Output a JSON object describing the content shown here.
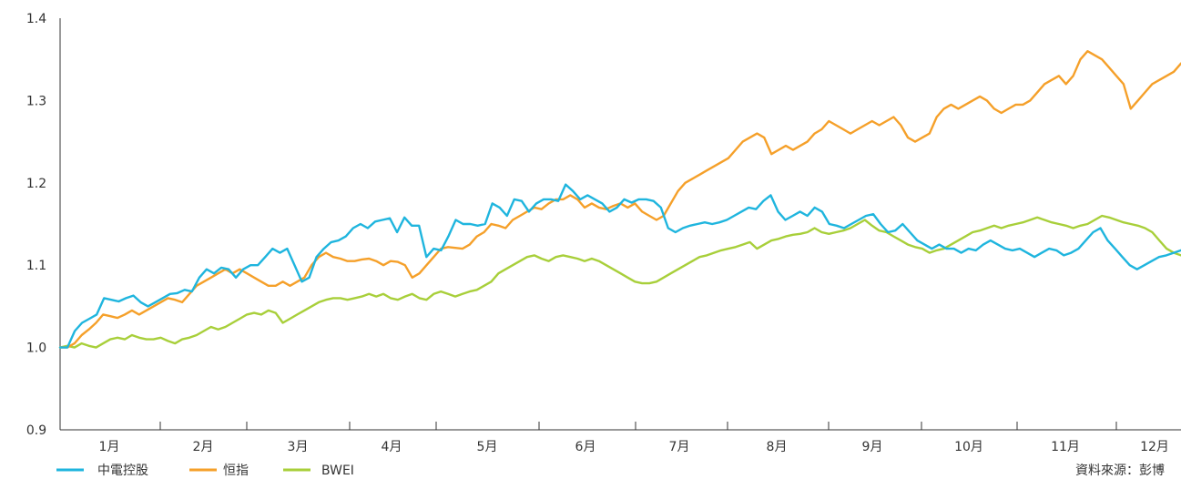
{
  "chart_data": {
    "type": "line",
    "title": "",
    "xlabel": "",
    "ylabel": "",
    "ylim": [
      0.9,
      1.4
    ],
    "yticks": [
      "0.9",
      "1.0",
      "1.1",
      "1.2",
      "1.3",
      "1.4"
    ],
    "x_month_labels": [
      "1月",
      "2月",
      "3月",
      "4月",
      "5月",
      "6月",
      "7月",
      "8月",
      "9月",
      "10月",
      "11月",
      "12月"
    ],
    "grid": false,
    "legend_position": "bottom-left",
    "source": "資料來源：彭博",
    "series": [
      {
        "name": "中電控股",
        "color": "#1fb5de",
        "values": [
          1.0,
          1.0,
          1.02,
          1.03,
          1.035,
          1.04,
          1.06,
          1.058,
          1.056,
          1.06,
          1.063,
          1.055,
          1.05,
          1.055,
          1.06,
          1.065,
          1.066,
          1.07,
          1.068,
          1.085,
          1.095,
          1.09,
          1.097,
          1.095,
          1.085,
          1.095,
          1.1,
          1.1,
          1.11,
          1.12,
          1.115,
          1.12,
          1.1,
          1.08,
          1.085,
          1.11,
          1.12,
          1.128,
          1.13,
          1.135,
          1.145,
          1.15,
          1.145,
          1.153,
          1.155,
          1.157,
          1.14,
          1.158,
          1.148,
          1.148,
          1.11,
          1.12,
          1.118,
          1.135,
          1.155,
          1.15,
          1.15,
          1.148,
          1.15,
          1.175,
          1.17,
          1.16,
          1.18,
          1.178,
          1.165,
          1.175,
          1.18,
          1.18,
          1.178,
          1.198,
          1.19,
          1.18,
          1.185,
          1.18,
          1.175,
          1.165,
          1.17,
          1.18,
          1.176,
          1.18,
          1.18,
          1.178,
          1.17,
          1.145,
          1.14,
          1.145,
          1.148,
          1.15,
          1.152,
          1.15,
          1.152,
          1.155,
          1.16,
          1.165,
          1.17,
          1.168,
          1.178,
          1.185,
          1.165,
          1.155,
          1.16,
          1.165,
          1.16,
          1.17,
          1.165,
          1.15,
          1.148,
          1.145,
          1.15,
          1.155,
          1.16,
          1.162,
          1.15,
          1.14,
          1.142,
          1.15,
          1.14,
          1.13,
          1.125,
          1.12,
          1.125,
          1.12,
          1.12,
          1.115,
          1.12,
          1.118,
          1.125,
          1.13,
          1.125,
          1.12,
          1.118,
          1.12,
          1.115,
          1.11,
          1.115,
          1.12,
          1.118,
          1.112,
          1.115,
          1.12,
          1.13,
          1.14,
          1.145,
          1.13,
          1.12,
          1.11,
          1.1,
          1.095,
          1.1,
          1.105,
          1.11,
          1.112,
          1.115,
          1.118
        ]
      },
      {
        "name": "恒指",
        "color": "#f5a02a",
        "values": [
          1.0,
          1.0,
          1.005,
          1.015,
          1.022,
          1.03,
          1.04,
          1.038,
          1.036,
          1.04,
          1.045,
          1.04,
          1.045,
          1.05,
          1.055,
          1.06,
          1.058,
          1.055,
          1.065,
          1.075,
          1.08,
          1.085,
          1.09,
          1.095,
          1.09,
          1.095,
          1.09,
          1.085,
          1.08,
          1.075,
          1.075,
          1.08,
          1.075,
          1.08,
          1.085,
          1.1,
          1.11,
          1.115,
          1.11,
          1.108,
          1.105,
          1.105,
          1.107,
          1.108,
          1.105,
          1.1,
          1.105,
          1.104,
          1.1,
          1.085,
          1.09,
          1.1,
          1.11,
          1.12,
          1.122,
          1.121,
          1.12,
          1.125,
          1.135,
          1.14,
          1.15,
          1.148,
          1.145,
          1.155,
          1.16,
          1.165,
          1.17,
          1.168,
          1.175,
          1.18,
          1.18,
          1.185,
          1.18,
          1.17,
          1.175,
          1.17,
          1.168,
          1.172,
          1.175,
          1.17,
          1.175,
          1.165,
          1.16,
          1.155,
          1.16,
          1.175,
          1.19,
          1.2,
          1.205,
          1.21,
          1.215,
          1.22,
          1.225,
          1.23,
          1.24,
          1.25,
          1.255,
          1.26,
          1.255,
          1.235,
          1.24,
          1.245,
          1.24,
          1.245,
          1.25,
          1.26,
          1.265,
          1.275,
          1.27,
          1.265,
          1.26,
          1.265,
          1.27,
          1.275,
          1.27,
          1.275,
          1.28,
          1.27,
          1.255,
          1.25,
          1.255,
          1.26,
          1.28,
          1.29,
          1.295,
          1.29,
          1.295,
          1.3,
          1.305,
          1.3,
          1.29,
          1.285,
          1.29,
          1.295,
          1.295,
          1.3,
          1.31,
          1.32,
          1.325,
          1.33,
          1.32,
          1.33,
          1.35,
          1.36,
          1.355,
          1.35,
          1.34,
          1.33,
          1.32,
          1.29,
          1.3,
          1.31,
          1.32,
          1.325,
          1.33,
          1.335,
          1.345
        ]
      },
      {
        "name": "BWEI",
        "color": "#a8cf3a",
        "values": [
          1.0,
          1.002,
          1.0,
          1.005,
          1.002,
          1.0,
          1.005,
          1.01,
          1.012,
          1.01,
          1.015,
          1.012,
          1.01,
          1.01,
          1.012,
          1.008,
          1.005,
          1.01,
          1.012,
          1.015,
          1.02,
          1.025,
          1.022,
          1.025,
          1.03,
          1.035,
          1.04,
          1.042,
          1.04,
          1.045,
          1.042,
          1.03,
          1.035,
          1.04,
          1.045,
          1.05,
          1.055,
          1.058,
          1.06,
          1.06,
          1.058,
          1.06,
          1.062,
          1.065,
          1.062,
          1.065,
          1.06,
          1.058,
          1.062,
          1.065,
          1.06,
          1.058,
          1.065,
          1.068,
          1.065,
          1.062,
          1.065,
          1.068,
          1.07,
          1.075,
          1.08,
          1.09,
          1.095,
          1.1,
          1.105,
          1.11,
          1.112,
          1.108,
          1.105,
          1.11,
          1.112,
          1.11,
          1.108,
          1.105,
          1.108,
          1.105,
          1.1,
          1.095,
          1.09,
          1.085,
          1.08,
          1.078,
          1.078,
          1.08,
          1.085,
          1.09,
          1.095,
          1.1,
          1.105,
          1.11,
          1.112,
          1.115,
          1.118,
          1.12,
          1.122,
          1.125,
          1.128,
          1.12,
          1.125,
          1.13,
          1.132,
          1.135,
          1.137,
          1.138,
          1.14,
          1.145,
          1.14,
          1.138,
          1.14,
          1.142,
          1.145,
          1.15,
          1.155,
          1.148,
          1.142,
          1.14,
          1.135,
          1.13,
          1.125,
          1.122,
          1.12,
          1.115,
          1.118,
          1.12,
          1.125,
          1.13,
          1.135,
          1.14,
          1.142,
          1.145,
          1.148,
          1.145,
          1.148,
          1.15,
          1.152,
          1.155,
          1.158,
          1.155,
          1.152,
          1.15,
          1.148,
          1.145,
          1.148,
          1.15,
          1.155,
          1.16,
          1.158,
          1.155,
          1.152,
          1.15,
          1.148,
          1.145,
          1.14,
          1.13,
          1.12,
          1.115,
          1.112
        ]
      }
    ]
  }
}
